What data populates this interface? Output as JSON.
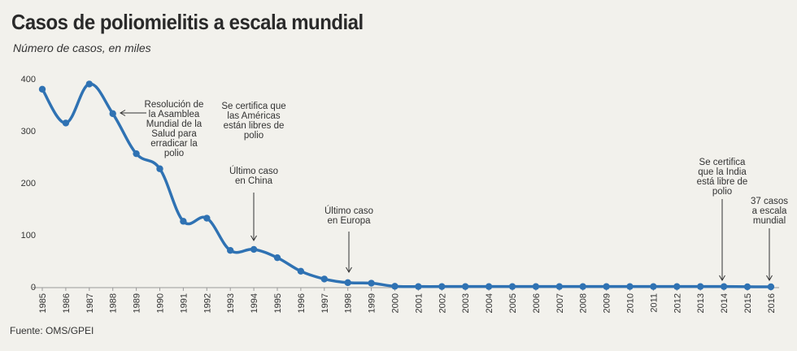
{
  "chart_data": {
    "type": "line",
    "title": "Casos de poliomielitis a escala mundial",
    "subtitle": "Número de casos, en miles",
    "source": "Fuente: OMS/GPEI",
    "series_color": "#2f72b3",
    "xlabel": "",
    "ylabel": "",
    "ylim": [
      0,
      400
    ],
    "yticks": [
      0,
      100,
      200,
      300,
      400
    ],
    "x": [
      1985,
      1986,
      1987,
      1988,
      1989,
      1990,
      1991,
      1992,
      1993,
      1994,
      1995,
      1996,
      1997,
      1998,
      1999,
      2000,
      2001,
      2002,
      2003,
      2004,
      2005,
      2006,
      2007,
      2008,
      2009,
      2010,
      2011,
      2012,
      2013,
      2014,
      2015,
      2016
    ],
    "series": [
      {
        "name": "Casos (miles)",
        "values": [
          380,
          315,
          390,
          333,
          256,
          227,
          126,
          132,
          70,
          72,
          56,
          30,
          15,
          8,
          7,
          1,
          0.5,
          0.5,
          0.5,
          0.5,
          0.5,
          0.5,
          0.5,
          0.5,
          0.5,
          0.5,
          0.5,
          0.5,
          0.5,
          0.5,
          0.1,
          0.037
        ]
      }
    ],
    "annotations": [
      {
        "year": 1988,
        "lines": [
          "Resolución de",
          "la Asamblea",
          "Mundial de la",
          "Salud para",
          "erradicar la",
          "polio"
        ]
      },
      {
        "year": 1994,
        "lines": [
          "Se certifica que",
          "las Américas",
          "están libres de",
          "polio"
        ]
      },
      {
        "year": 1994,
        "lines": [
          "Último caso",
          "en China"
        ]
      },
      {
        "year": 1998,
        "lines": [
          "Último caso",
          "en Europa"
        ]
      },
      {
        "year": 2014,
        "lines": [
          "Se certifica",
          "que la India",
          "está libre de",
          "polio"
        ]
      },
      {
        "year": 2016,
        "lines": [
          "37 casos",
          "a escala",
          "mundial"
        ]
      }
    ]
  }
}
